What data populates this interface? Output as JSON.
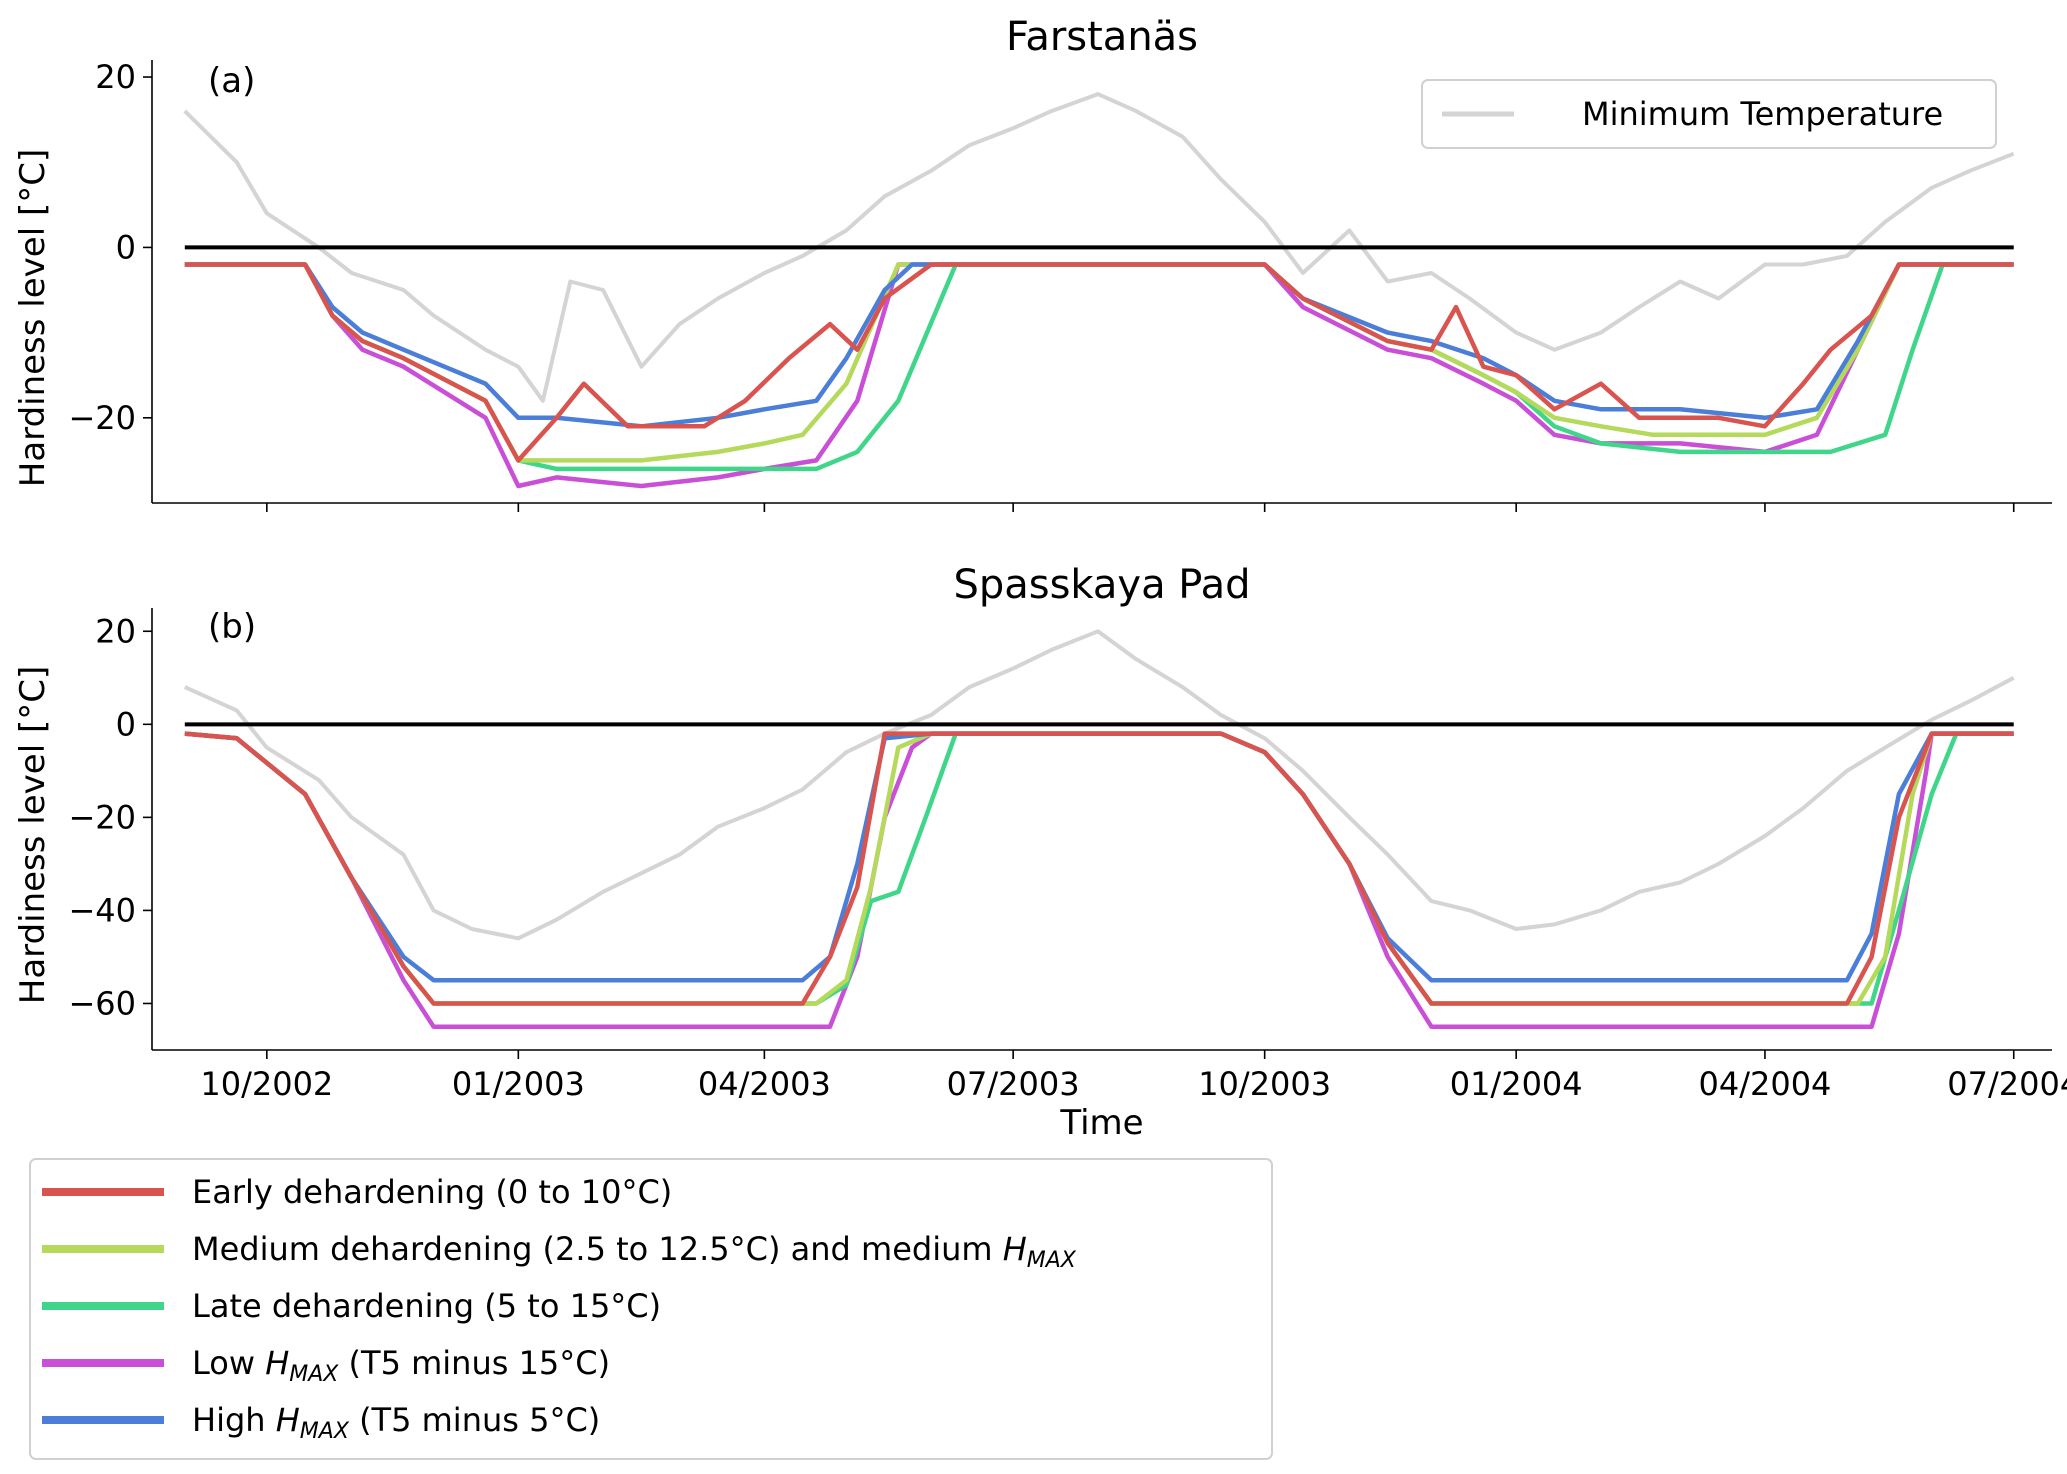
{
  "chart_data": [
    {
      "type": "line",
      "title": "Farstanäs",
      "panel_label": "(a)",
      "xlabel": "",
      "ylabel": "Hardiness level [°C]",
      "ylim": [
        -30,
        22
      ],
      "yticks": [
        -20,
        0,
        20
      ],
      "ytick_labels": [
        "−20",
        "0",
        "20"
      ],
      "xlim": [
        "2002-08-20",
        "2004-07-15"
      ],
      "zero_line": 0,
      "legend": {
        "placement": "top-right",
        "entries": [
          "Minimum Temperature"
        ]
      },
      "series": [
        {
          "name": "Minimum Temperature",
          "color": "#d4d4d4",
          "x": [
            "2002-09-01",
            "2002-09-20",
            "2002-10-01",
            "2002-10-20",
            "2002-11-01",
            "2002-11-20",
            "2002-12-01",
            "2002-12-20",
            "2003-01-01",
            "2003-01-10",
            "2003-01-20",
            "2003-02-01",
            "2003-02-15",
            "2003-03-01",
            "2003-03-15",
            "2003-04-01",
            "2003-04-15",
            "2003-05-01",
            "2003-05-15",
            "2003-06-01",
            "2003-06-15",
            "2003-07-01",
            "2003-07-15",
            "2003-08-01",
            "2003-08-15",
            "2003-09-01",
            "2003-09-15",
            "2003-10-01",
            "2003-10-15",
            "2003-11-01",
            "2003-11-15",
            "2003-12-01",
            "2003-12-15",
            "2004-01-01",
            "2004-01-15",
            "2004-02-01",
            "2004-02-15",
            "2004-03-01",
            "2004-03-15",
            "2004-04-01",
            "2004-04-15",
            "2004-05-01",
            "2004-05-15",
            "2004-06-01",
            "2004-06-15",
            "2004-07-01"
          ],
          "values": [
            16,
            10,
            4,
            0,
            -3,
            -5,
            -8,
            -12,
            -14,
            -18,
            -4,
            -5,
            -14,
            -9,
            -6,
            -3,
            -1,
            2,
            6,
            9,
            12,
            14,
            16,
            18,
            16,
            13,
            8,
            3,
            -3,
            2,
            -4,
            -3,
            -6,
            -10,
            -12,
            -10,
            -7,
            -4,
            -6,
            -2,
            -2,
            -1,
            3,
            7,
            9,
            11
          ]
        },
        {
          "name": "Early dehardening (0 to 10°C)",
          "color": "#d9534f",
          "x": [
            "2002-09-01",
            "2002-10-15",
            "2002-10-25",
            "2002-11-05",
            "2002-11-20",
            "2002-12-20",
            "2003-01-01",
            "2003-01-15",
            "2003-01-25",
            "2003-02-10",
            "2003-03-01",
            "2003-03-10",
            "2003-03-25",
            "2003-04-10",
            "2003-04-25",
            "2003-05-05",
            "2003-05-15",
            "2003-06-01",
            "2003-09-15",
            "2003-10-01",
            "2003-10-15",
            "2003-11-15",
            "2003-12-01",
            "2003-12-10",
            "2003-12-20",
            "2004-01-01",
            "2004-01-15",
            "2004-02-01",
            "2004-02-15",
            "2004-03-01",
            "2004-03-15",
            "2004-04-01",
            "2004-04-15",
            "2004-04-25",
            "2004-05-10",
            "2004-05-20",
            "2004-06-01",
            "2004-07-01"
          ],
          "values": [
            -2,
            -2,
            -8,
            -11,
            -13,
            -18,
            -25,
            -20,
            -16,
            -21,
            -21,
            -21,
            -18,
            -13,
            -9,
            -12,
            -6,
            -2,
            -2,
            -2,
            -6,
            -11,
            -12,
            -7,
            -14,
            -15,
            -19,
            -16,
            -20,
            -20,
            -20,
            -21,
            -16,
            -12,
            -8,
            -2,
            -2,
            -2
          ]
        },
        {
          "name": "Medium dehardening (2.5 to 12.5°C) and medium H_MAX",
          "color": "#b5d95a",
          "x": [
            "2002-09-01",
            "2002-10-15",
            "2002-10-25",
            "2002-11-05",
            "2002-11-20",
            "2002-12-20",
            "2003-01-01",
            "2003-01-15",
            "2003-02-15",
            "2003-03-15",
            "2003-04-01",
            "2003-04-15",
            "2003-05-01",
            "2003-05-20",
            "2003-06-01",
            "2003-09-15",
            "2003-10-01",
            "2003-10-15",
            "2003-11-15",
            "2003-12-01",
            "2003-12-20",
            "2004-01-01",
            "2004-01-15",
            "2004-02-01",
            "2004-02-20",
            "2004-03-15",
            "2004-04-01",
            "2004-04-20",
            "2004-05-05",
            "2004-05-20",
            "2004-06-01",
            "2004-07-01"
          ],
          "values": [
            -2,
            -2,
            -8,
            -11,
            -13,
            -18,
            -25,
            -25,
            -25,
            -24,
            -23,
            -22,
            -16,
            -2,
            -2,
            -2,
            -2,
            -6,
            -11,
            -12,
            -15,
            -17,
            -20,
            -21,
            -22,
            -22,
            -22,
            -20,
            -12,
            -2,
            -2,
            -2
          ]
        },
        {
          "name": "Late dehardening (5 to 15°C)",
          "color": "#3fd68a",
          "x": [
            "2002-09-01",
            "2002-10-15",
            "2002-10-25",
            "2002-11-05",
            "2002-11-20",
            "2002-12-20",
            "2003-01-01",
            "2003-01-15",
            "2003-02-15",
            "2003-04-01",
            "2003-04-20",
            "2003-05-05",
            "2003-05-20",
            "2003-06-10",
            "2003-09-15",
            "2003-10-01",
            "2003-10-15",
            "2003-11-15",
            "2003-12-01",
            "2003-12-20",
            "2004-01-01",
            "2004-01-15",
            "2004-02-01",
            "2004-03-01",
            "2004-04-01",
            "2004-04-25",
            "2004-05-15",
            "2004-05-25",
            "2004-06-05",
            "2004-06-15",
            "2004-07-01"
          ],
          "values": [
            -2,
            -2,
            -8,
            -11,
            -13,
            -18,
            -25,
            -26,
            -26,
            -26,
            -26,
            -24,
            -18,
            -2,
            -2,
            -2,
            -6,
            -11,
            -12,
            -15,
            -17,
            -21,
            -23,
            -24,
            -24,
            -24,
            -22,
            -12,
            -2,
            -2,
            -2
          ]
        },
        {
          "name": "Low H_MAX (T5 minus 15°C)",
          "color": "#c94fd6",
          "x": [
            "2002-09-01",
            "2002-10-15",
            "2002-10-25",
            "2002-11-05",
            "2002-11-20",
            "2002-12-20",
            "2003-01-01",
            "2003-01-15",
            "2003-02-15",
            "2003-03-15",
            "2003-04-01",
            "2003-04-20",
            "2003-05-05",
            "2003-05-20",
            "2003-06-01",
            "2003-09-15",
            "2003-10-01",
            "2003-10-15",
            "2003-11-15",
            "2003-12-01",
            "2003-12-20",
            "2004-01-01",
            "2004-01-15",
            "2004-02-01",
            "2004-03-01",
            "2004-04-01",
            "2004-04-20",
            "2004-05-05",
            "2004-05-20",
            "2004-06-01",
            "2004-07-01"
          ],
          "values": [
            -2,
            -2,
            -8,
            -12,
            -14,
            -20,
            -28,
            -27,
            -28,
            -27,
            -26,
            -25,
            -18,
            -2,
            -2,
            -2,
            -2,
            -7,
            -12,
            -13,
            -16,
            -18,
            -22,
            -23,
            -23,
            -24,
            -22,
            -12,
            -2,
            -2,
            -2
          ]
        },
        {
          "name": "High H_MAX (T5 minus 5°C)",
          "color": "#4a7ed9",
          "x": [
            "2002-09-01",
            "2002-10-15",
            "2002-10-25",
            "2002-11-05",
            "2002-11-20",
            "2002-12-20",
            "2003-01-01",
            "2003-01-15",
            "2003-02-15",
            "2003-03-15",
            "2003-04-01",
            "2003-04-20",
            "2003-05-01",
            "2003-05-15",
            "2003-05-25",
            "2003-06-01",
            "2003-09-15",
            "2003-10-01",
            "2003-10-15",
            "2003-11-15",
            "2003-12-01",
            "2003-12-20",
            "2004-01-01",
            "2004-01-15",
            "2004-02-01",
            "2004-03-01",
            "2004-04-01",
            "2004-04-20",
            "2004-05-05",
            "2004-05-20",
            "2004-06-01",
            "2004-07-01"
          ],
          "values": [
            -2,
            -2,
            -7,
            -10,
            -12,
            -16,
            -20,
            -20,
            -21,
            -20,
            -19,
            -18,
            -13,
            -5,
            -2,
            -2,
            -2,
            -2,
            -6,
            -10,
            -11,
            -13,
            -15,
            -18,
            -19,
            -19,
            -20,
            -19,
            -11,
            -2,
            -2,
            -2
          ]
        }
      ]
    },
    {
      "type": "line",
      "title": "Spasskaya Pad",
      "panel_label": "(b)",
      "xlabel": "Time",
      "ylabel": "Hardiness level [°C]",
      "ylim": [
        -70,
        25
      ],
      "yticks": [
        -60,
        -40,
        -20,
        0,
        20
      ],
      "ytick_labels": [
        "−60",
        "−40",
        "−20",
        "0",
        "20"
      ],
      "xlim": [
        "2002-08-20",
        "2004-07-15"
      ],
      "xticks": [
        "2002-10-01",
        "2003-01-01",
        "2003-04-01",
        "2003-07-01",
        "2003-10-01",
        "2004-01-01",
        "2004-04-01",
        "2004-07-01"
      ],
      "xtick_labels": [
        "10/2002",
        "01/2003",
        "04/2003",
        "07/2003",
        "10/2003",
        "01/2004",
        "04/2004",
        "07/2004"
      ],
      "zero_line": 0,
      "series": [
        {
          "name": "Minimum Temperature",
          "color": "#d4d4d4",
          "x": [
            "2002-09-01",
            "2002-09-20",
            "2002-10-01",
            "2002-10-20",
            "2002-11-01",
            "2002-11-20",
            "2002-12-01",
            "2002-12-15",
            "2003-01-01",
            "2003-01-15",
            "2003-02-01",
            "2003-02-15",
            "2003-03-01",
            "2003-03-15",
            "2003-04-01",
            "2003-04-15",
            "2003-05-01",
            "2003-05-15",
            "2003-06-01",
            "2003-06-15",
            "2003-07-01",
            "2003-07-15",
            "2003-08-01",
            "2003-08-15",
            "2003-09-01",
            "2003-09-15",
            "2003-10-01",
            "2003-10-15",
            "2003-11-01",
            "2003-11-15",
            "2003-12-01",
            "2003-12-15",
            "2004-01-01",
            "2004-01-15",
            "2004-02-01",
            "2004-02-15",
            "2004-03-01",
            "2004-03-15",
            "2004-04-01",
            "2004-04-15",
            "2004-05-01",
            "2004-05-15",
            "2004-06-01",
            "2004-06-15",
            "2004-07-01"
          ],
          "values": [
            8,
            3,
            -5,
            -12,
            -20,
            -28,
            -40,
            -44,
            -46,
            -42,
            -36,
            -32,
            -28,
            -22,
            -18,
            -14,
            -6,
            -2,
            2,
            8,
            12,
            16,
            20,
            14,
            8,
            2,
            -3,
            -10,
            -20,
            -28,
            -38,
            -40,
            -44,
            -43,
            -40,
            -36,
            -34,
            -30,
            -24,
            -18,
            -10,
            -5,
            1,
            5,
            10
          ]
        },
        {
          "name": "Early dehardening (0 to 10°C)",
          "color": "#d9534f",
          "x": [
            "2002-09-01",
            "2002-09-20",
            "2002-10-15",
            "2002-11-01",
            "2002-11-20",
            "2002-12-01",
            "2003-04-15",
            "2003-04-25",
            "2003-05-05",
            "2003-05-15",
            "2003-06-01",
            "2003-09-15",
            "2003-10-01",
            "2003-10-15",
            "2003-11-01",
            "2003-11-15",
            "2003-12-01",
            "2004-05-01",
            "2004-05-10",
            "2004-05-20",
            "2004-06-01",
            "2004-07-01"
          ],
          "values": [
            -2,
            -3,
            -15,
            -33,
            -52,
            -60,
            -60,
            -50,
            -35,
            -2,
            -2,
            -2,
            -6,
            -15,
            -30,
            -47,
            -60,
            -60,
            -50,
            -20,
            -2,
            -2
          ]
        },
        {
          "name": "Medium dehardening (2.5 to 12.5°C) and medium H_MAX",
          "color": "#b5d95a",
          "x": [
            "2002-09-01",
            "2002-09-20",
            "2002-10-15",
            "2002-11-01",
            "2002-11-20",
            "2002-12-01",
            "2003-04-20",
            "2003-05-01",
            "2003-05-10",
            "2003-05-20",
            "2003-06-01",
            "2003-09-15",
            "2003-10-01",
            "2003-10-15",
            "2003-11-01",
            "2003-11-15",
            "2003-12-01",
            "2004-05-05",
            "2004-05-15",
            "2004-05-25",
            "2004-06-01",
            "2004-07-01"
          ],
          "values": [
            -2,
            -3,
            -15,
            -33,
            -52,
            -60,
            -60,
            -55,
            -35,
            -5,
            -2,
            -2,
            -6,
            -15,
            -30,
            -47,
            -60,
            -60,
            -50,
            -15,
            -2,
            -2
          ]
        },
        {
          "name": "Late dehardening (5 to 15°C)",
          "color": "#3fd68a",
          "x": [
            "2002-09-01",
            "2002-09-20",
            "2002-10-15",
            "2002-11-01",
            "2002-11-20",
            "2002-12-01",
            "2003-04-20",
            "2003-05-01",
            "2003-05-10",
            "2003-05-20",
            "2003-05-30",
            "2003-06-10",
            "2003-09-15",
            "2003-10-01",
            "2003-10-15",
            "2003-11-01",
            "2003-11-15",
            "2003-12-01",
            "2004-05-10",
            "2004-05-20",
            "2004-06-01",
            "2004-06-10",
            "2004-07-01"
          ],
          "values": [
            -2,
            -3,
            -15,
            -33,
            -52,
            -60,
            -60,
            -56,
            -38,
            -36,
            -20,
            -2,
            -2,
            -6,
            -15,
            -30,
            -47,
            -60,
            -60,
            -40,
            -15,
            -2,
            -2
          ]
        },
        {
          "name": "Low H_MAX (T5 minus 15°C)",
          "color": "#c94fd6",
          "x": [
            "2002-09-01",
            "2002-09-20",
            "2002-10-15",
            "2002-11-01",
            "2002-11-20",
            "2002-12-01",
            "2003-04-25",
            "2003-05-05",
            "2003-05-15",
            "2003-05-25",
            "2003-06-01",
            "2003-09-15",
            "2003-10-01",
            "2003-10-15",
            "2003-11-01",
            "2003-11-15",
            "2003-12-01",
            "2004-05-10",
            "2004-05-20",
            "2004-05-30",
            "2004-06-01",
            "2004-07-01"
          ],
          "values": [
            -2,
            -3,
            -15,
            -33,
            -55,
            -65,
            -65,
            -50,
            -20,
            -5,
            -2,
            -2,
            -6,
            -15,
            -30,
            -50,
            -65,
            -65,
            -45,
            -10,
            -2,
            -2
          ]
        },
        {
          "name": "High H_MAX (T5 minus 5°C)",
          "color": "#4a7ed9",
          "x": [
            "2002-09-01",
            "2002-09-20",
            "2002-10-15",
            "2002-11-01",
            "2002-11-20",
            "2002-12-01",
            "2003-04-15",
            "2003-04-25",
            "2003-05-05",
            "2003-05-15",
            "2003-06-01",
            "2003-09-15",
            "2003-10-01",
            "2003-10-15",
            "2003-11-01",
            "2003-11-15",
            "2003-12-01",
            "2004-05-01",
            "2004-05-10",
            "2004-05-20",
            "2004-06-01",
            "2004-07-01"
          ],
          "values": [
            -2,
            -3,
            -15,
            -33,
            -50,
            -55,
            -55,
            -50,
            -30,
            -3,
            -2,
            -2,
            -6,
            -15,
            -30,
            -46,
            -55,
            -55,
            -45,
            -15,
            -2,
            -2
          ]
        }
      ]
    }
  ],
  "legend_bottom": {
    "placement": "bottom-left",
    "entries": [
      {
        "color": "#d9534f",
        "parts": [
          "Early dehardening (0 to 10°C)"
        ]
      },
      {
        "color": "#b5d95a",
        "parts": [
          "Medium dehardening (2.5 to 12.5°C) and medium ",
          "H",
          "MAX"
        ]
      },
      {
        "color": "#3fd68a",
        "parts": [
          "Late dehardening (5 to 15°C)"
        ]
      },
      {
        "color": "#c94fd6",
        "parts": [
          "Low ",
          "H",
          "MAX",
          " (T5 minus 15°C)"
        ]
      },
      {
        "color": "#4a7ed9",
        "parts": [
          "High ",
          "H",
          "MAX",
          " (T5 minus 5°C)"
        ]
      }
    ]
  }
}
